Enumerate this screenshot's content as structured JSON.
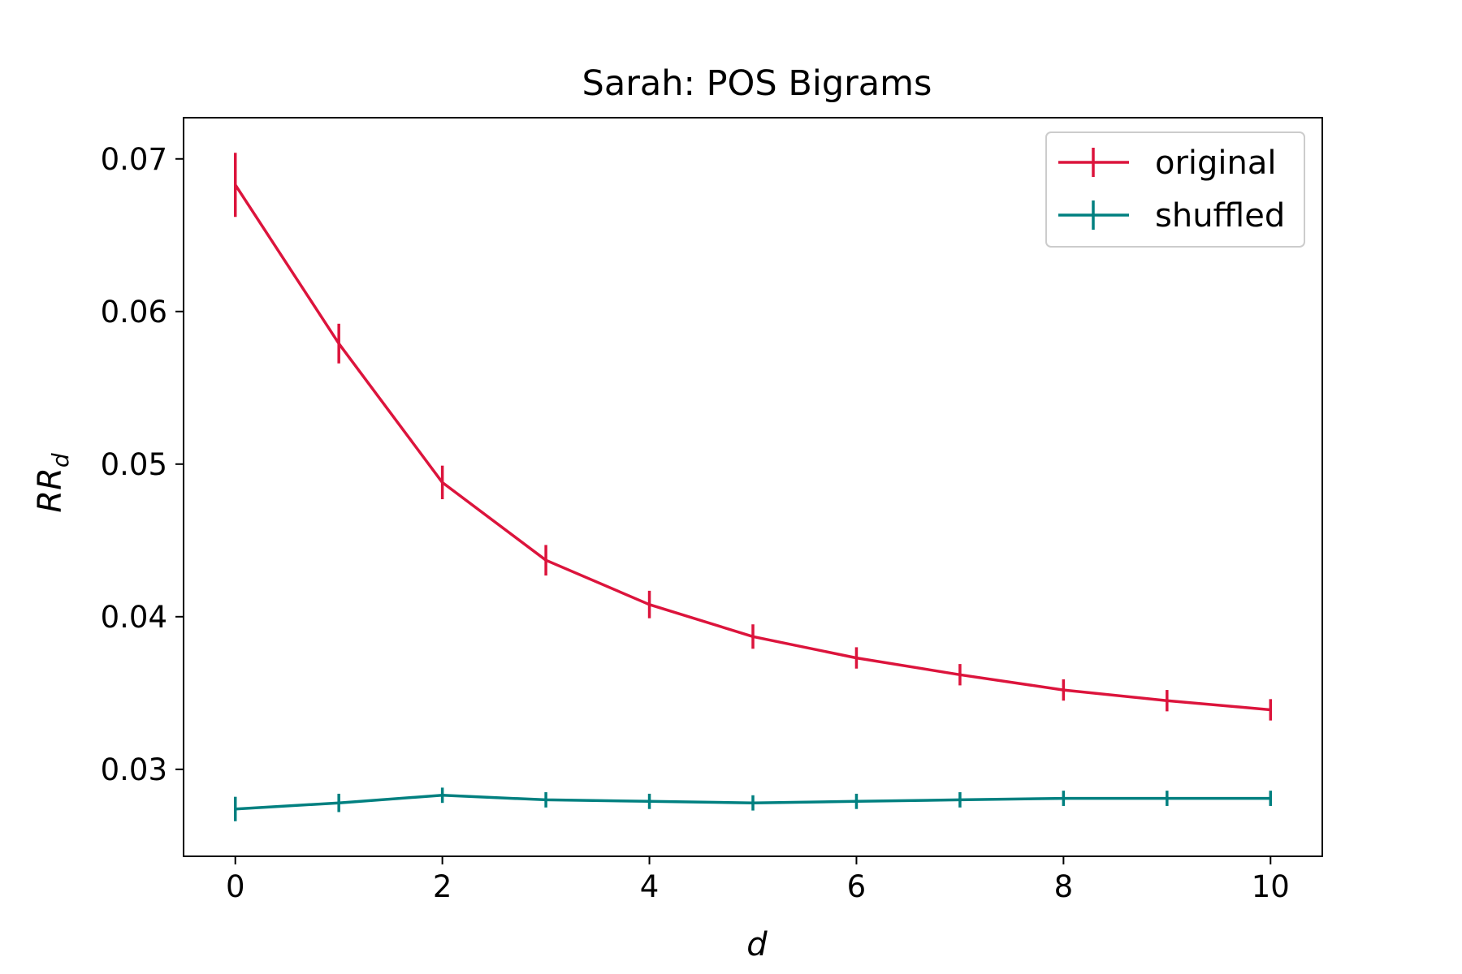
{
  "chart_data": {
    "type": "line",
    "title": "Sarah: POS Bigrams",
    "xlabel": "d",
    "ylabel": {
      "main": "RR",
      "sub": "d"
    },
    "xlim": [
      -0.5,
      10.5
    ],
    "ylim": [
      0.0243,
      0.0727
    ],
    "x_ticks": [
      0,
      2,
      4,
      6,
      8,
      10
    ],
    "x_tick_labels": [
      "0",
      "2",
      "4",
      "6",
      "8",
      "10"
    ],
    "y_ticks": [
      0.03,
      0.04,
      0.05,
      0.06,
      0.07
    ],
    "y_tick_labels": [
      "0.03",
      "0.04",
      "0.05",
      "0.06",
      "0.07"
    ],
    "grid": false,
    "legend_position": "top-right",
    "x": [
      0,
      1,
      2,
      3,
      4,
      5,
      6,
      7,
      8,
      9,
      10
    ],
    "series": [
      {
        "name": "original",
        "color": "#dc143c",
        "values": [
          0.0683,
          0.0579,
          0.0488,
          0.0437,
          0.0408,
          0.0387,
          0.0373,
          0.0362,
          0.0352,
          0.0345,
          0.0339
        ],
        "errors": [
          0.0021,
          0.0013,
          0.0011,
          0.001,
          0.0009,
          0.0008,
          0.0007,
          0.0007,
          0.0007,
          0.0007,
          0.0007
        ]
      },
      {
        "name": "shuffled",
        "color": "#008080",
        "values": [
          0.0274,
          0.0278,
          0.0283,
          0.028,
          0.0279,
          0.0278,
          0.0279,
          0.028,
          0.0281,
          0.0281,
          0.0281
        ],
        "errors": [
          0.0008,
          0.0006,
          0.0005,
          0.0005,
          0.0005,
          0.0005,
          0.0005,
          0.0005,
          0.0005,
          0.0005,
          0.0005
        ]
      }
    ]
  }
}
